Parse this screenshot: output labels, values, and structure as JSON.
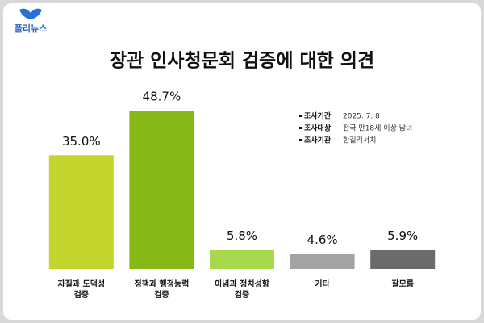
{
  "logo": {
    "text": "폴리뉴스"
  },
  "chart_data": {
    "type": "bar",
    "title": "장관 인사청문회 검증에 대한 의견",
    "categories": [
      [
        "자질과 도덕성",
        "검증"
      ],
      [
        "정책과 행정능력",
        "검증"
      ],
      [
        "이념과 정치성향",
        "검증"
      ],
      [
        "기타"
      ],
      [
        "잘모름"
      ]
    ],
    "values": [
      35.0,
      48.7,
      5.8,
      4.6,
      5.9
    ],
    "value_labels": [
      "35.0%",
      "48.7%",
      "5.8%",
      "4.6%",
      "5.9%"
    ],
    "colors": [
      "#c3d52c",
      "#86b817",
      "#a7d94c",
      "#a3a3a3",
      "#6b6b6b"
    ],
    "notes": [
      {
        "label": "조사기간",
        "value": "2025. 7. 8"
      },
      {
        "label": "조사대상",
        "value": "전국 만18세 이상 남녀"
      },
      {
        "label": "조사기관",
        "value": "한길리서치"
      }
    ]
  }
}
